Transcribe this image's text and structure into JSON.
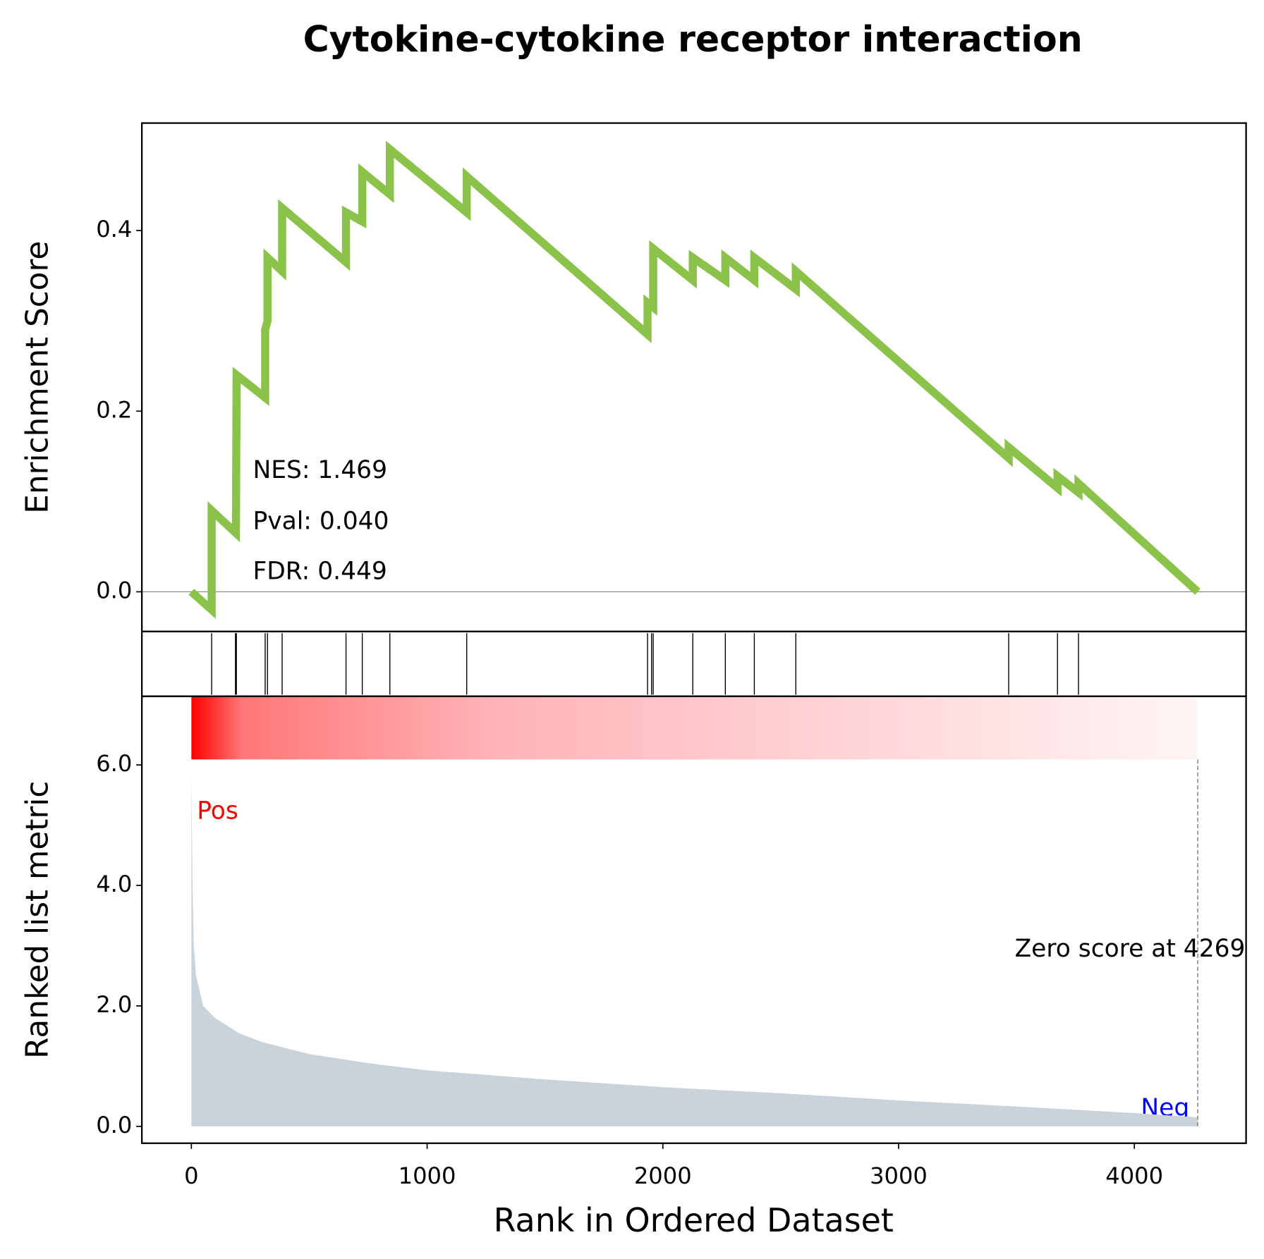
{
  "chart_data": [
    {
      "type": "line",
      "title": "Cytokine-cytokine receptor interaction",
      "ylabel": "Enrichment Score",
      "xlim": [
        -210,
        4474
      ],
      "ylim": [
        -0.044,
        0.519
      ],
      "yticks": [
        {
          "value": 0,
          "label": "0.0"
        },
        {
          "value": 0.2,
          "label": "0.2"
        },
        {
          "value": 0.4,
          "label": "0.4"
        }
      ],
      "annotations": [
        "NES: 1.469",
        "Pval: 0.040",
        "FDR: 0.449"
      ],
      "series": [
        {
          "name": "Enrichment Score",
          "color": "#8bc34a",
          "x": [
            0,
            86,
            86,
            189,
            192,
            313,
            313,
            323,
            323,
            385,
            385,
            656,
            656,
            725,
            725,
            842,
            842,
            1168,
            1168,
            1935,
            1935,
            1959,
            1959,
            2127,
            2127,
            2265,
            2265,
            2388,
            2388,
            2564,
            2564,
            3467,
            3467,
            3674,
            3674,
            3763,
            3763,
            4269
          ],
          "values": [
            0,
            -0.02,
            0.09,
            0.065,
            0.24,
            0.215,
            0.29,
            0.3,
            0.37,
            0.355,
            0.425,
            0.365,
            0.42,
            0.41,
            0.465,
            0.44,
            0.49,
            0.42,
            0.46,
            0.285,
            0.32,
            0.315,
            0.38,
            0.345,
            0.37,
            0.345,
            0.37,
            0.345,
            0.37,
            0.335,
            0.355,
            0.148,
            0.16,
            0.115,
            0.128,
            0.11,
            0.12,
            0
          ]
        }
      ],
      "hits": [
        86,
        187,
        191,
        313,
        323,
        385,
        656,
        725,
        842,
        1168,
        1935,
        1952,
        1959,
        2127,
        2265,
        2388,
        2564,
        3467,
        3674,
        3763
      ]
    },
    {
      "type": "area",
      "xlabel": "Rank in Ordered Dataset",
      "ylabel": "Ranked list metric",
      "xlim": [
        -210,
        4474
      ],
      "ylim": [
        -0.28,
        7.14
      ],
      "xticks": [
        0,
        1000,
        2000,
        3000,
        4000
      ],
      "yticks": [
        {
          "value": 0,
          "label": "0.0"
        },
        {
          "value": 2,
          "label": "2.0"
        },
        {
          "value": 4,
          "label": "4.0"
        },
        {
          "value": 6,
          "label": "6.0"
        }
      ],
      "pos_label": "Pos",
      "neg_label": "Neg",
      "zero_score_text": "Zero score at 4269",
      "zero_score_at": 4269,
      "series": [
        {
          "name": "Ranked list metric",
          "color": "#c9d3dc",
          "x": [
            0,
            5,
            10,
            20,
            50,
            100,
            200,
            300,
            500,
            750,
            1000,
            1500,
            2000,
            2500,
            3000,
            3500,
            4000,
            4269
          ],
          "values": [
            5.8,
            4.0,
            3.0,
            2.5,
            2.0,
            1.8,
            1.55,
            1.4,
            1.2,
            1.05,
            0.93,
            0.78,
            0.65,
            0.55,
            0.43,
            0.33,
            0.22,
            0.15
          ]
        }
      ]
    }
  ]
}
